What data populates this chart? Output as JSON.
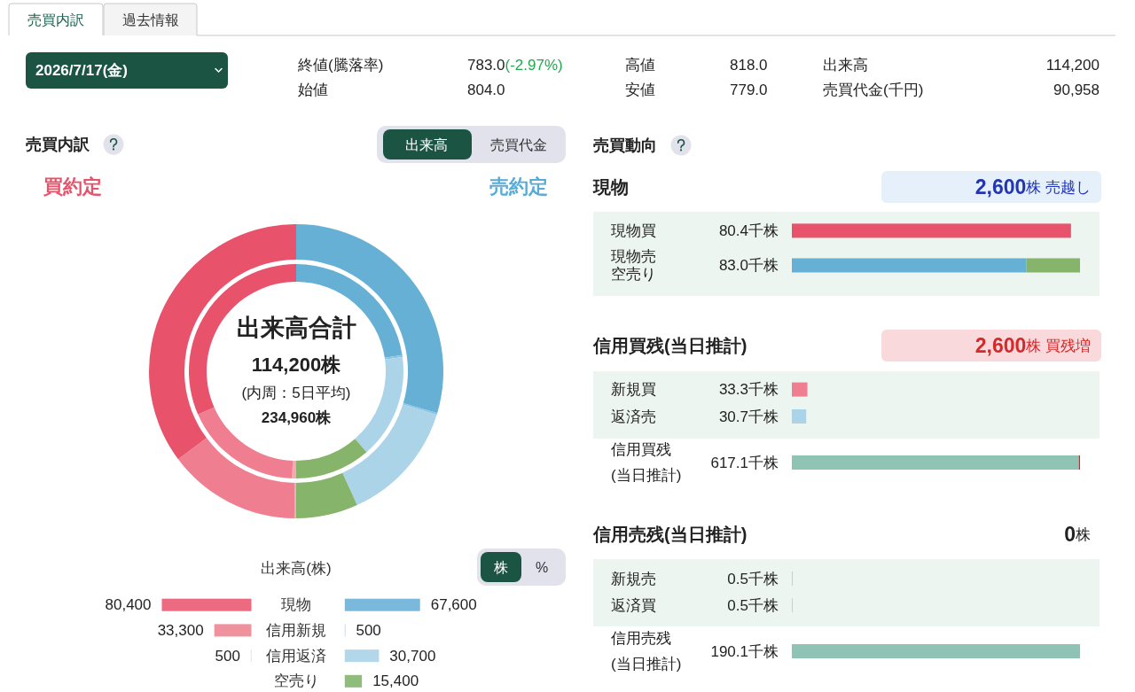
{
  "chart_data": [
    {
      "type": "other",
      "annotations": [
        "売買内訳",
        "過去情報",
        "2026/7/17(金)",
        "終値(騰落率)",
        "783.0(-2.97%)",
        "高値",
        "818.0",
        "出来高",
        "114,200",
        "始値",
        "804.0",
        "安値",
        "779.0",
        "売買代金(千円)",
        "90,958"
      ]
    },
    {
      "type": "donut",
      "title": "売買内訳",
      "categories": [
        null,
        null,
        null,
        null,
        null,
        null,
        null
      ],
      "values": [
        29.6,
        0.2,
        13.4,
        6.8,
        0.2,
        14.6,
        35.2
      ],
      "colors": [
        "#66b0d6",
        "#8cc3e0",
        "#acd4e9",
        "#85b46a",
        "#f4aab5",
        "#ef7f90",
        "#e8536b"
      ],
      "annotations": [
        "出来高",
        "売買代金",
        "買約定",
        "売約定",
        "出来高合計",
        "114,200株"
      ]
    },
    {
      "type": "donut",
      "categories": [
        null,
        null,
        null,
        null,
        null,
        null,
        null
      ],
      "values": [
        22.6,
        0.3,
        15.7,
        11.4,
        0.6,
        17.8,
        31.6
      ],
      "colors": [
        "#66b0d6",
        "#8cc3e0",
        "#acd4e9",
        "#85b46a",
        "#f4aab5",
        "#ef7f90",
        "#e8536b"
      ],
      "annotations": [
        "(内周：5日平均)",
        "234,960株"
      ]
    },
    {
      "type": "bar",
      "orientation": "horizontal",
      "categories": [
        "現物",
        "信用新規",
        "信用返済",
        "空売り"
      ],
      "tick_labels": false,
      "xlim": [
        80400,
        0
      ],
      "values": [
        80400,
        33300,
        500,
        null
      ],
      "colors": [
        "#ec6b80",
        "#f0919e",
        "#f8c6cd",
        null
      ],
      "value_labels": [
        "80,400",
        "33,300",
        "500",
        null
      ]
    },
    {
      "type": "bar",
      "orientation": "horizontal",
      "title": "出来高(株)",
      "categories": [
        "現物",
        "信用新規",
        "信用返済",
        "空売り"
      ],
      "values": [
        67600,
        500,
        30700,
        15400
      ],
      "colors": [
        "#7ab9dc",
        "#9ccbe6",
        "#b2d7eb",
        "#90bc7c"
      ],
      "value_labels": [
        "67,600",
        "500",
        "30,700",
        "15,400"
      ],
      "annotations": [
        "株",
        "%"
      ]
    },
    {
      "type": "bar",
      "orientation": "horizontal",
      "stacked": true,
      "title": "売買動向",
      "subtitle": "現物",
      "categories": [
        "現物買",
        "現物売空売り"
      ],
      "series": [
        {
          "values": [
            80.4,
            67.6
          ],
          "colors": [
            "#e8536b",
            "#66b0d6"
          ],
          "value_labels": [
            "80.4千株",
            null
          ]
        },
        {
          "values": [
            null,
            15.4
          ],
          "color": "#85b46a"
        }
      ],
      "totals": [
        null,
        "83.0千株"
      ],
      "bands": [
        {
          "axis": "y",
          "from": "現物買",
          "to": "現物売空売り",
          "color": "#edf5f1"
        }
      ],
      "annotations": [
        "2,600株 売越し"
      ]
    },
    {
      "type": "bar",
      "orientation": "horizontal",
      "stacked": true,
      "title": "信用買残(当日推計)",
      "categories": [
        "新規買",
        "返済売",
        "信用買残(当日推計)"
      ],
      "series": [
        {
          "values": [
            33.3,
            30.7,
            614.5
          ],
          "colors": [
            "#ef7f90",
            "#acd4e9",
            "#8fc4b4"
          ],
          "value_labels": [
            "33.3千株",
            "30.7千株",
            null
          ]
        },
        {
          "values": [
            null,
            null,
            2.6
          ],
          "color": "#d9262f"
        }
      ],
      "totals": [
        null,
        null,
        "617.1千株"
      ],
      "bands": [
        {
          "axis": "y",
          "from": "新規買",
          "to": "返済売",
          "color": "#edf5f1"
        }
      ],
      "annotations": [
        "2,600株 買残増"
      ]
    },
    {
      "type": "bar",
      "orientation": "horizontal",
      "title": "信用売残(当日推計)",
      "categories": [
        "新規売",
        "返済買",
        "信用売残(当日推計)"
      ],
      "values": [
        0.5,
        0.5,
        190.1
      ],
      "colors": [
        "#9fd0e8",
        "#f4b3bd",
        "#8fc4b4"
      ],
      "value_labels": [
        "0.5千株",
        "0.5千株",
        "190.1千株"
      ],
      "bands": [
        {
          "axis": "y",
          "from": "新規売",
          "to": "返済買",
          "color": "#edf5f1"
        }
      ],
      "annotations": [
        "0株"
      ]
    }
  ]
}
